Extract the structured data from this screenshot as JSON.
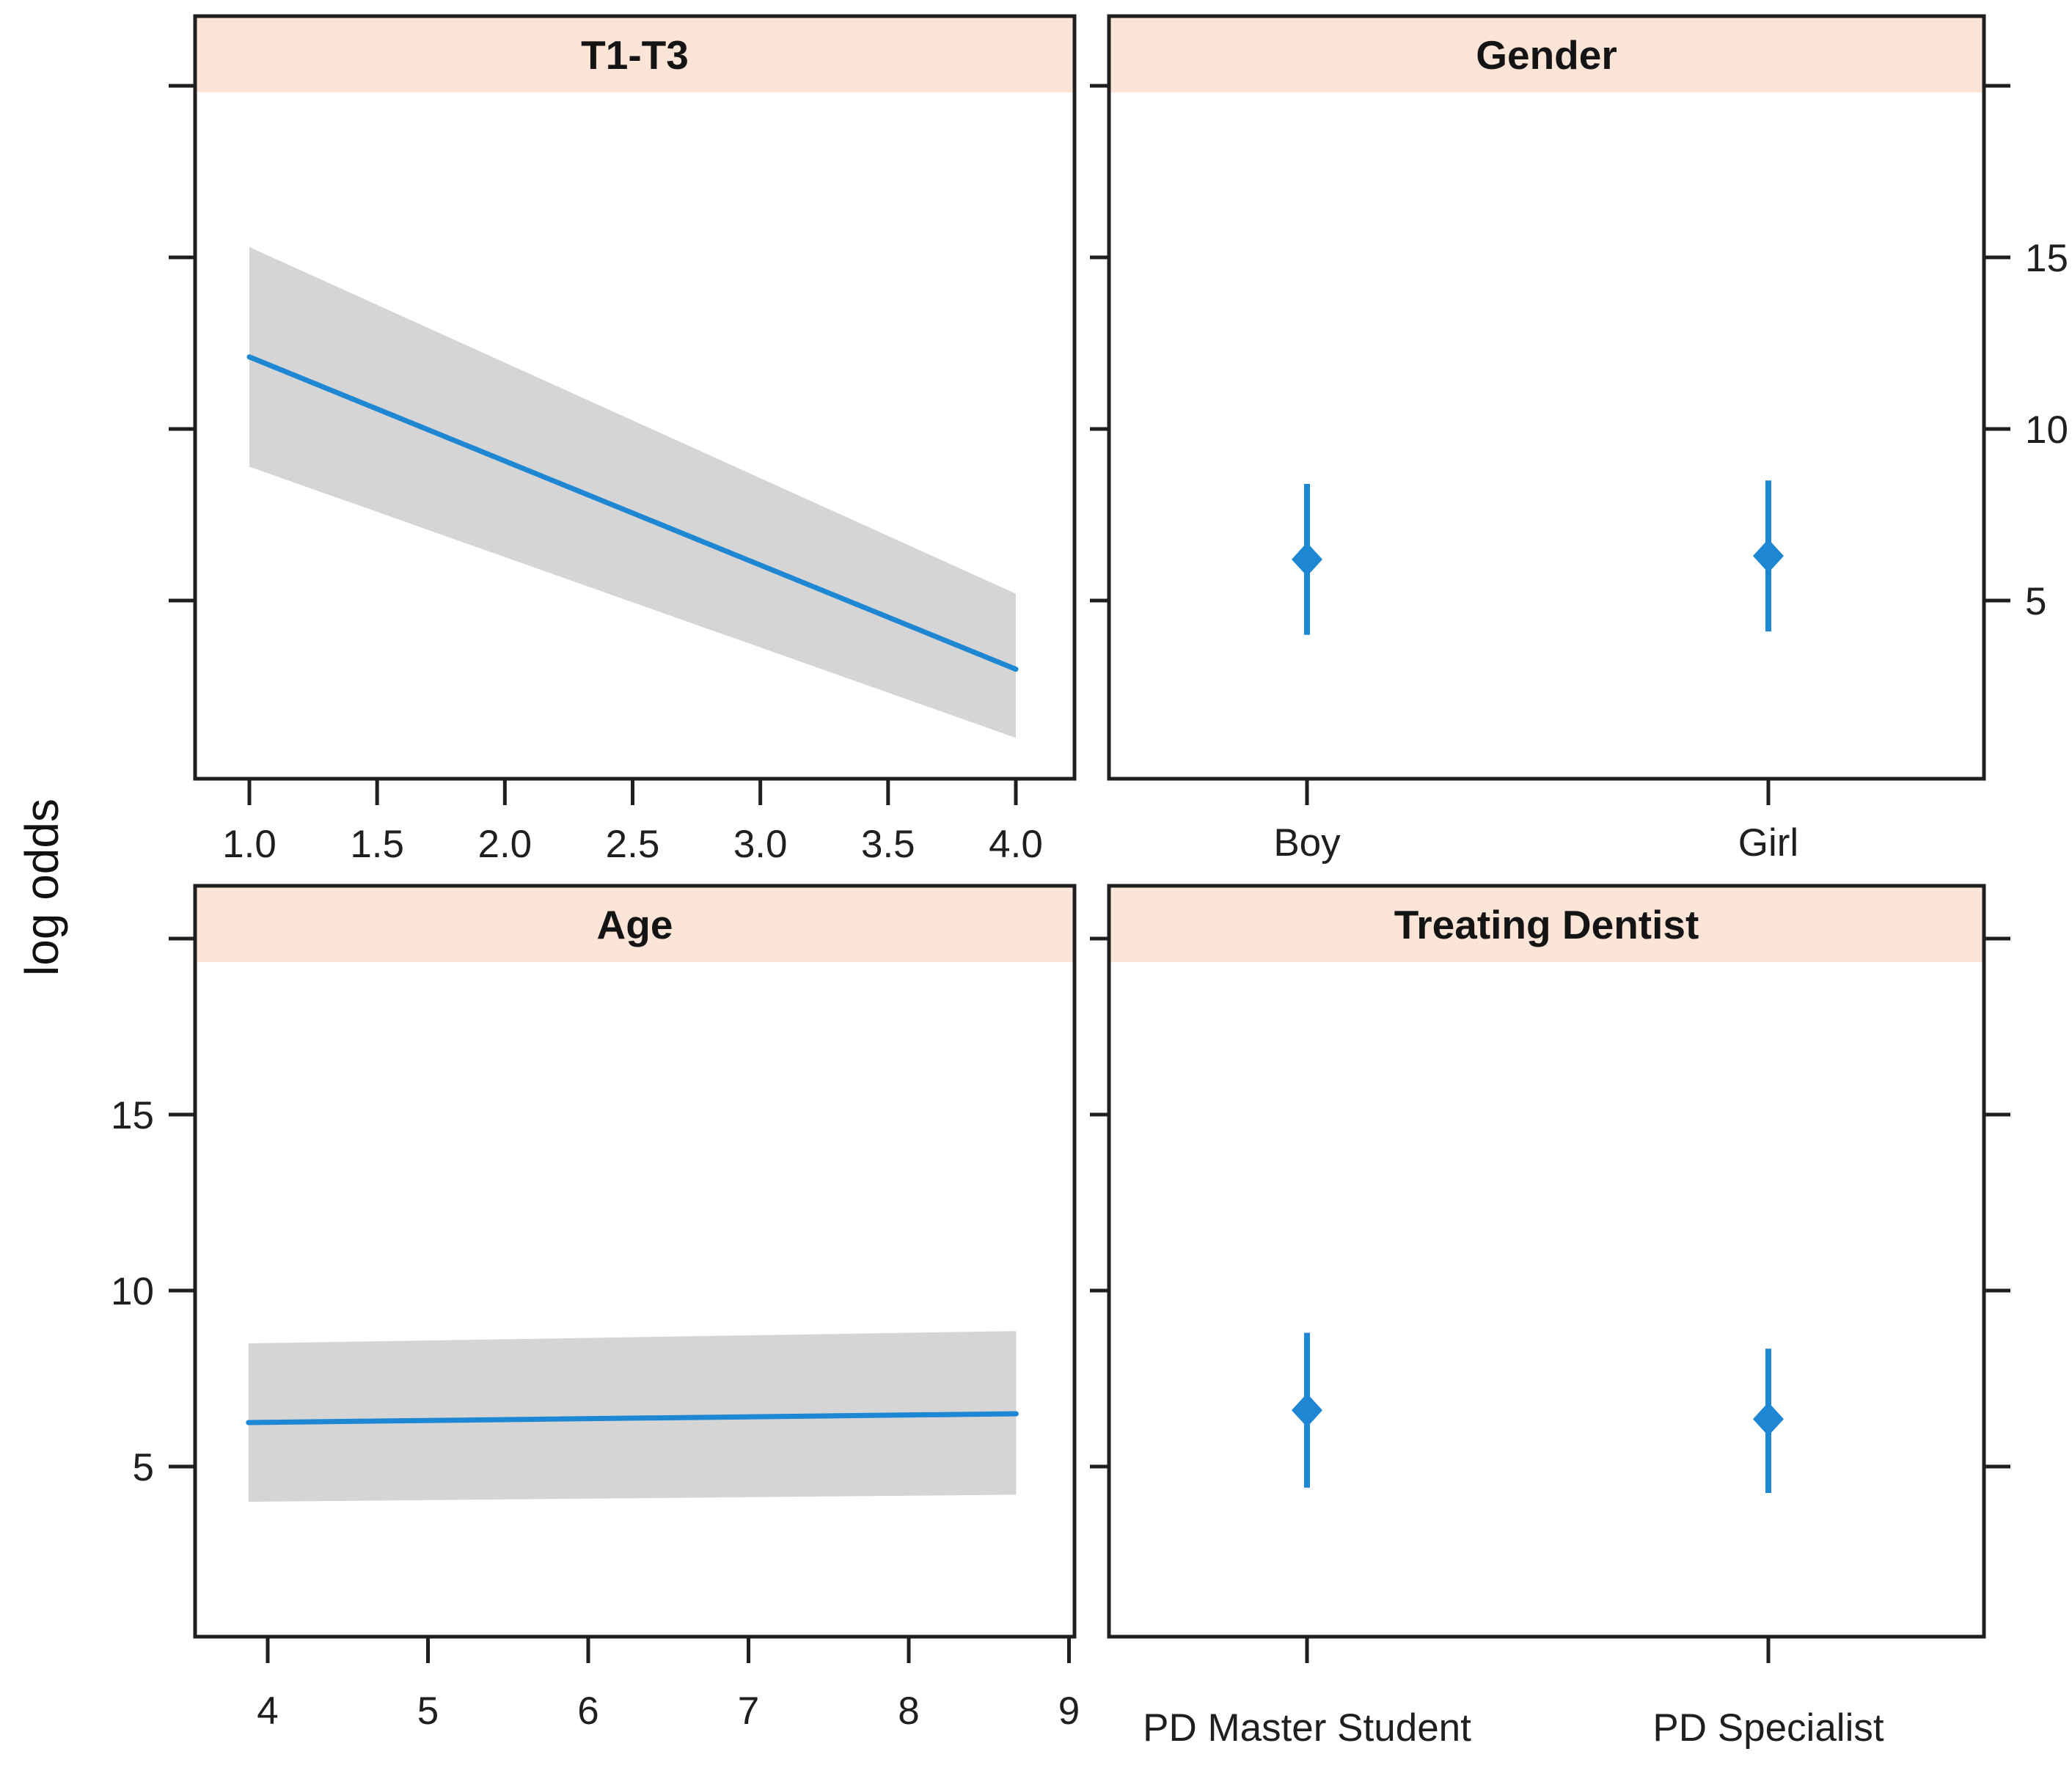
{
  "figure": {
    "y_axis_label": "log odds",
    "colors": {
      "line_blue": "#1E87D3",
      "band_gray": "#D5D5D5",
      "header_fill": "#FCE4D6",
      "axis": "#1F1F1F",
      "text": "#1F1F1F"
    }
  },
  "y_axis": {
    "label": "log odds",
    "labeled_ticks": [
      15,
      10,
      5
    ],
    "unlabeled_ticks": [
      20
    ],
    "ylim": [
      0,
      22
    ],
    "top_row_label_side": "right",
    "bottom_row_label_side": "left",
    "grid": "off",
    "legend": "none"
  },
  "chart_data": [
    {
      "type": "line",
      "title": "T1-T3",
      "position": "top-left",
      "xlabel": "",
      "ylabel": "log odds",
      "xlim": [
        0.79,
        4.23
      ],
      "ylim": [
        0,
        22
      ],
      "x_tick_labels": [
        "1.0",
        "1.5",
        "2.0",
        "2.5",
        "3.0",
        "3.5",
        "4.0"
      ],
      "x_tick_values": [
        1.0,
        1.5,
        2.0,
        2.5,
        3.0,
        3.5,
        4.0
      ],
      "series": {
        "x": [
          1.0,
          4.0
        ],
        "fit": [
          12.1,
          3.0
        ],
        "ci_upper": [
          15.3,
          5.2
        ],
        "ci_lower": [
          8.9,
          1.0
        ]
      },
      "band": "gray 95% confidence band"
    },
    {
      "type": "pointrange",
      "title": "Gender",
      "position": "top-right",
      "xlabel": "",
      "ylabel": "log odds",
      "ylim": [
        0,
        22
      ],
      "categories": [
        "Boy",
        "Girl"
      ],
      "estimates": [
        6.2,
        6.3
      ],
      "ci_upper": [
        8.4,
        8.5
      ],
      "ci_lower": [
        4.0,
        4.1
      ],
      "y_tick_labels": [
        "15",
        "10",
        "5"
      ]
    },
    {
      "type": "line",
      "title": "Age",
      "position": "bottom-left",
      "xlabel": "",
      "ylabel": "log odds",
      "xlim": [
        3.55,
        9.05
      ],
      "ylim": [
        0,
        22
      ],
      "x_tick_labels": [
        "4",
        "5",
        "6",
        "7",
        "8",
        "9"
      ],
      "x_tick_values": [
        4,
        5,
        6,
        7,
        8,
        9
      ],
      "series": {
        "x": [
          3.88,
          8.67
        ],
        "fit": [
          6.25,
          6.5
        ],
        "ci_upper": [
          8.5,
          8.85
        ],
        "ci_lower": [
          4.0,
          4.2
        ]
      },
      "band": "gray 95% confidence band",
      "y_tick_labels": [
        "15",
        "10",
        "5"
      ]
    },
    {
      "type": "pointrange",
      "title": "Treating Dentist",
      "position": "bottom-right",
      "xlabel": "",
      "ylabel": "log odds",
      "ylim": [
        0,
        22
      ],
      "categories": [
        "PD Master Student",
        "PD Specialist"
      ],
      "estimates": [
        6.6,
        6.35
      ],
      "ci_upper": [
        8.8,
        8.35
      ],
      "ci_lower": [
        4.4,
        4.25
      ]
    }
  ]
}
